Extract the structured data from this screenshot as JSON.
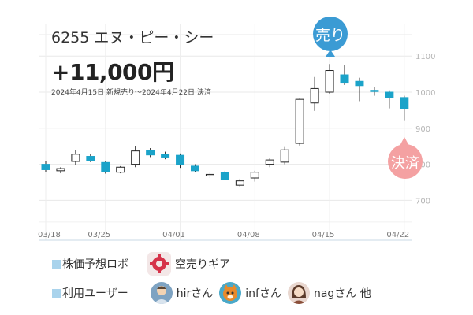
{
  "header": {
    "title": "6255 エヌ・ピー・シー",
    "result": "+11,000円",
    "period": "2024年4月15日 新規売り〜2024年4月22日 決済"
  },
  "badges": {
    "sell": "売り",
    "settle": "決済"
  },
  "legend": {
    "robot_label": "株価予想ロボ",
    "robot_name": "空売りギア",
    "users_label": "利用ユーザー",
    "users": [
      {
        "name": "hirさん"
      },
      {
        "name": "infさん"
      },
      {
        "name": "nagさん 他"
      }
    ]
  },
  "colors": {
    "up": "#ffffff",
    "down": "#1ba3c9",
    "sell_badge": "#3b9bd4",
    "settle_badge": "#f4a1a2",
    "grid": "#e8e8e8"
  },
  "chart_data": {
    "type": "candlestick",
    "x_tick_labels": [
      "03/18",
      "03/25",
      "04/01",
      "04/08",
      "04/15",
      "04/22"
    ],
    "y_tick_labels": [
      "700",
      "800",
      "900",
      "1000",
      "1100"
    ],
    "ylim": [
      640,
      1160
    ],
    "candles": [
      {
        "date": "03/18",
        "open": 800,
        "close": 785,
        "high": 808,
        "low": 778
      },
      {
        "date": "03/19",
        "open": 782,
        "close": 788,
        "high": 792,
        "low": 775
      },
      {
        "date": "03/21",
        "open": 808,
        "close": 828,
        "high": 840,
        "low": 798
      },
      {
        "date": "03/22",
        "open": 822,
        "close": 810,
        "high": 828,
        "low": 806
      },
      {
        "date": "03/25",
        "open": 805,
        "close": 780,
        "high": 810,
        "low": 774
      },
      {
        "date": "03/26",
        "open": 778,
        "close": 792,
        "high": 795,
        "low": 775
      },
      {
        "date": "03/27",
        "open": 800,
        "close": 837,
        "high": 850,
        "low": 792
      },
      {
        "date": "03/28",
        "open": 838,
        "close": 826,
        "high": 845,
        "low": 820
      },
      {
        "date": "03/29",
        "open": 828,
        "close": 820,
        "high": 835,
        "low": 814
      },
      {
        "date": "04/01",
        "open": 825,
        "close": 798,
        "high": 830,
        "low": 790
      },
      {
        "date": "04/02",
        "open": 795,
        "close": 782,
        "high": 800,
        "low": 778
      },
      {
        "date": "04/03",
        "open": 768,
        "close": 772,
        "high": 778,
        "low": 762
      },
      {
        "date": "04/04",
        "open": 778,
        "close": 758,
        "high": 782,
        "low": 756
      },
      {
        "date": "04/05",
        "open": 742,
        "close": 754,
        "high": 760,
        "low": 736
      },
      {
        "date": "04/08",
        "open": 762,
        "close": 778,
        "high": 782,
        "low": 752
      },
      {
        "date": "04/09",
        "open": 800,
        "close": 812,
        "high": 818,
        "low": 792
      },
      {
        "date": "04/10",
        "open": 806,
        "close": 840,
        "high": 848,
        "low": 800
      },
      {
        "date": "04/11",
        "open": 858,
        "close": 980,
        "high": 982,
        "low": 852
      },
      {
        "date": "04/12",
        "open": 970,
        "close": 1010,
        "high": 1042,
        "low": 948
      },
      {
        "date": "04/15",
        "open": 1000,
        "close": 1060,
        "high": 1078,
        "low": 996
      },
      {
        "date": "04/16",
        "open": 1048,
        "close": 1025,
        "high": 1075,
        "low": 1020
      },
      {
        "date": "04/17",
        "open": 1030,
        "close": 1018,
        "high": 1040,
        "low": 975
      },
      {
        "date": "04/18",
        "open": 1005,
        "close": 1004,
        "high": 1015,
        "low": 990
      },
      {
        "date": "04/19",
        "open": 1000,
        "close": 985,
        "high": 1005,
        "low": 955
      },
      {
        "date": "04/22",
        "open": 985,
        "close": 955,
        "high": 990,
        "low": 920
      }
    ]
  }
}
